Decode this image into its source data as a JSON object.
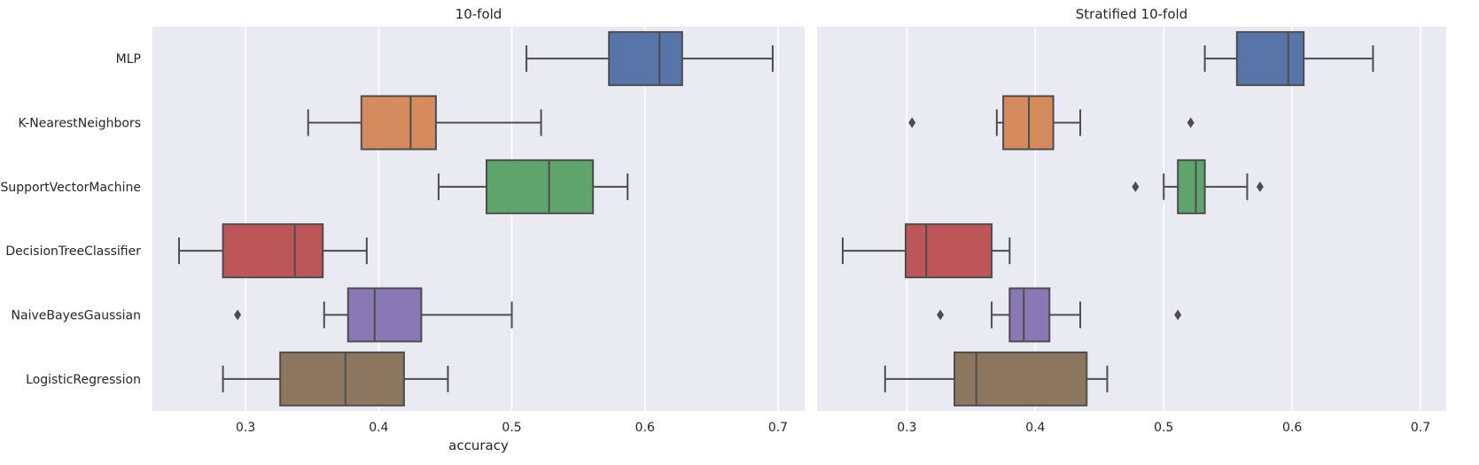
{
  "chart_data": [
    {
      "type": "boxplot",
      "title": "10-fold",
      "xlabel": "accuracy",
      "xlim": [
        0.23,
        0.72
      ],
      "xticks": [
        0.3,
        0.4,
        0.5,
        0.6,
        0.7
      ],
      "xtick_labels": [
        "0.3",
        "0.4",
        "0.5",
        "0.6",
        "0.7"
      ],
      "grid": true,
      "categories": [
        "MLP",
        "K-NearestNeighbors",
        "SupportVectorMachine",
        "DecisionTreeClassifier",
        "NaiveBayesGaussian",
        "LogisticRegression"
      ],
      "boxes": [
        {
          "whislo": 0.511,
          "q1": 0.573,
          "med": 0.611,
          "q3": 0.628,
          "whishi": 0.696,
          "fliers": []
        },
        {
          "whislo": 0.347,
          "q1": 0.387,
          "med": 0.424,
          "q3": 0.443,
          "whishi": 0.522,
          "fliers": []
        },
        {
          "whislo": 0.445,
          "q1": 0.481,
          "med": 0.528,
          "q3": 0.561,
          "whishi": 0.587,
          "fliers": []
        },
        {
          "whislo": 0.25,
          "q1": 0.283,
          "med": 0.337,
          "q3": 0.358,
          "whishi": 0.391,
          "fliers": []
        },
        {
          "whislo": 0.359,
          "q1": 0.377,
          "med": 0.397,
          "q3": 0.432,
          "whishi": 0.5,
          "fliers": [
            0.294
          ]
        },
        {
          "whislo": 0.283,
          "q1": 0.326,
          "med": 0.375,
          "q3": 0.419,
          "whishi": 0.452,
          "fliers": []
        }
      ]
    },
    {
      "type": "boxplot",
      "title": "Stratified 10-fold",
      "xlabel": "",
      "xlim": [
        0.23,
        0.72
      ],
      "xticks": [
        0.3,
        0.4,
        0.5,
        0.6,
        0.7
      ],
      "xtick_labels": [
        "0.3",
        "0.4",
        "0.5",
        "0.6",
        "0.7"
      ],
      "grid": true,
      "categories": [
        "MLP",
        "K-NearestNeighbors",
        "SupportVectorMachine",
        "DecisionTreeClassifier",
        "NaiveBayesGaussian",
        "LogisticRegression"
      ],
      "boxes": [
        {
          "whislo": 0.532,
          "q1": 0.557,
          "med": 0.597,
          "q3": 0.609,
          "whishi": 0.663,
          "fliers": []
        },
        {
          "whislo": 0.37,
          "q1": 0.375,
          "med": 0.395,
          "q3": 0.414,
          "whishi": 0.435,
          "fliers": [
            0.304,
            0.521
          ]
        },
        {
          "whislo": 0.5,
          "q1": 0.511,
          "med": 0.525,
          "q3": 0.532,
          "whishi": 0.565,
          "fliers": [
            0.478,
            0.575
          ]
        },
        {
          "whislo": 0.25,
          "q1": 0.299,
          "med": 0.315,
          "q3": 0.366,
          "whishi": 0.38,
          "fliers": []
        },
        {
          "whislo": 0.366,
          "q1": 0.38,
          "med": 0.391,
          "q3": 0.411,
          "whishi": 0.435,
          "fliers": [
            0.326,
            0.511
          ]
        },
        {
          "whislo": 0.283,
          "q1": 0.337,
          "med": 0.354,
          "q3": 0.44,
          "whishi": 0.456,
          "fliers": []
        }
      ]
    }
  ],
  "colors": {
    "background": "#eaeaf2",
    "grid": "#ffffff",
    "line": "#4d4d4d",
    "boxes": [
      "#5874a9",
      "#d68b5e",
      "#5fa36d",
      "#bd5659",
      "#8978b3",
      "#8c765f"
    ]
  }
}
